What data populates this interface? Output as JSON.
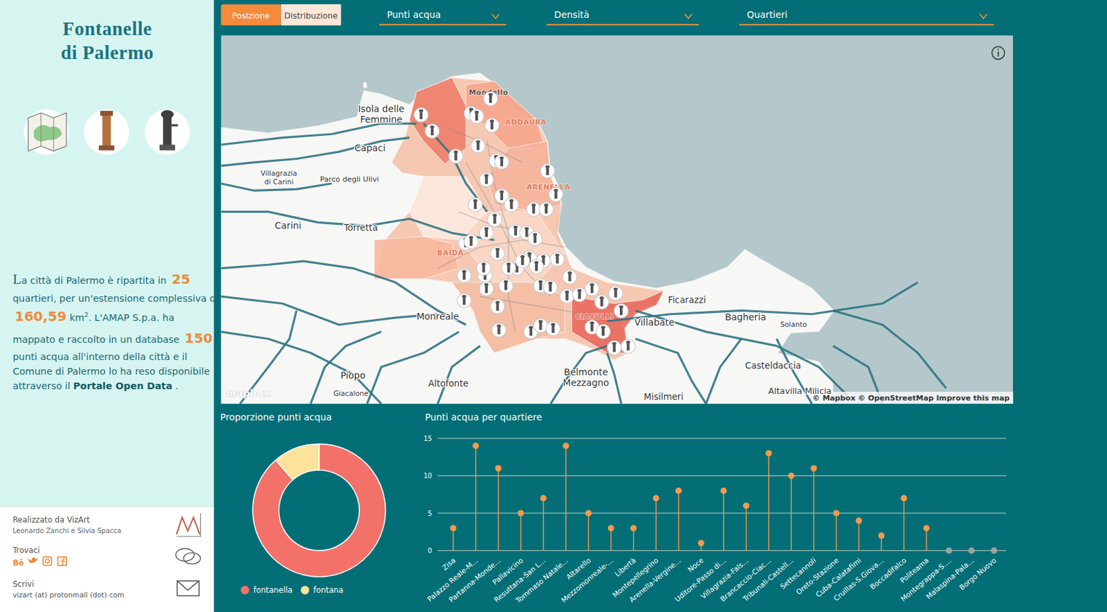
{
  "toolbar": {
    "toggle": [
      "Posizione",
      "Distribuzione"
    ],
    "active": "Posizione",
    "dropdowns": [
      "Punti acqua",
      "Densità",
      "Quartieri"
    ]
  },
  "sidebar": {
    "title": [
      "Fontanelle",
      "di Palermo"
    ],
    "intro": [
      [
        {
          "text": "L",
          "style": "initial"
        },
        {
          "text": "a città di Palermo è ripartita in ",
          "style": "plain"
        },
        {
          "text": "25",
          "style": "number"
        }
      ],
      [
        {
          "text": "quartieri, per un'estensione complessiva di",
          "style": "plain"
        }
      ],
      [
        {
          "text": "160,59",
          "style": "number"
        },
        {
          "text": " km",
          "style": "plain"
        },
        {
          "text": "2",
          "style": "sup"
        },
        {
          "text": ". L'AMAP S.p.a. ha",
          "style": "plain"
        }
      ],
      [
        {
          "text": "mappato e raccolto in un database ",
          "style": "plain"
        },
        {
          "text": "150",
          "style": "number"
        }
      ],
      [
        {
          "text": "punti acqua all'interno della città e il",
          "style": "plain"
        }
      ],
      [
        {
          "text": "Comune di Palermo lo ha reso disponibile",
          "style": "plain"
        }
      ],
      [
        {
          "text": "attraverso il ",
          "style": "plain"
        },
        {
          "text": "Portale Open Data",
          "style": "link"
        },
        {
          "text": " .",
          "style": "plain"
        }
      ]
    ],
    "footer": {
      "credit": "Realizzato da VizArt",
      "authors": "Leonardo Zanchi e Silvia Spacca",
      "social_label": "Trovaci",
      "social": [
        "Bē"
      ],
      "contact_label": "Scrivi",
      "email": "vizart (at) protonmail (dot) com"
    }
  },
  "map": {
    "xlim": [
      13.05,
      13.62
    ],
    "ylim": [
      38.24,
      37.99
    ],
    "places": [
      [
        "Isola delle",
        "Femmine"
      ],
      [
        "Capaci"
      ],
      [
        "Villagrazia",
        "di Carini"
      ],
      [
        "Parco degli Ulivi"
      ],
      [
        "Carini"
      ],
      [
        "Torretta"
      ],
      [
        "Monreale"
      ],
      [
        "Piopo"
      ],
      [
        "Giacalone"
      ],
      [
        "Altofonte"
      ],
      [
        "Belmonte",
        "Mezzagno"
      ],
      [
        "Misilmeri"
      ],
      [
        "Villabate"
      ],
      [
        "Ficarazzi"
      ],
      [
        "Bagheria"
      ],
      [
        "Solanto"
      ],
      [
        "Casteldaccia"
      ],
      [
        "Altavilla Milicia"
      ]
    ],
    "districts": [
      "Mondello",
      "ADDAURA",
      "ARENELLA",
      "BAIDA",
      "CIACULLI"
    ],
    "attribution": "© Mapbox © OpenStreetMap Improve this map",
    "logo": "mapbox",
    "markers": [
      [
        13.194,
        38.186
      ],
      [
        13.202,
        38.175
      ],
      [
        13.219,
        38.158
      ],
      [
        13.23,
        38.187
      ],
      [
        13.234,
        38.185
      ],
      [
        13.244,
        38.197
      ],
      [
        13.245,
        38.179
      ],
      [
        13.235,
        38.165
      ],
      [
        13.248,
        38.155
      ],
      [
        13.252,
        38.154
      ],
      [
        13.241,
        38.142
      ],
      [
        13.285,
        38.148
      ],
      [
        13.291,
        38.132
      ],
      [
        13.252,
        38.131
      ],
      [
        13.259,
        38.125
      ],
      [
        13.275,
        38.122
      ],
      [
        13.284,
        38.122
      ],
      [
        13.233,
        38.125
      ],
      [
        13.247,
        38.115
      ],
      [
        13.241,
        38.106
      ],
      [
        13.226,
        38.099
      ],
      [
        13.23,
        38.1
      ],
      [
        13.262,
        38.107
      ],
      [
        13.27,
        38.106
      ],
      [
        13.276,
        38.102
      ],
      [
        13.249,
        38.092
      ],
      [
        13.272,
        38.089
      ],
      [
        13.282,
        38.087
      ],
      [
        13.292,
        38.088
      ],
      [
        13.263,
        38.082
      ],
      [
        13.277,
        38.083
      ],
      [
        13.301,
        38.076
      ],
      [
        13.225,
        38.077
      ],
      [
        13.24,
        38.077
      ],
      [
        13.241,
        38.068
      ],
      [
        13.255,
        38.07
      ],
      [
        13.28,
        38.07
      ],
      [
        13.287,
        38.069
      ],
      [
        13.299,
        38.063
      ],
      [
        13.308,
        38.064
      ],
      [
        13.317,
        38.068
      ],
      [
        13.334,
        38.065
      ],
      [
        13.324,
        38.059
      ],
      [
        13.338,
        38.053
      ],
      [
        13.225,
        38.06
      ],
      [
        13.249,
        38.056
      ],
      [
        13.317,
        38.042
      ],
      [
        13.325,
        38.039
      ],
      [
        13.25,
        38.04
      ],
      [
        13.273,
        38.039
      ],
      [
        13.28,
        38.043
      ],
      [
        13.289,
        38.041
      ],
      [
        13.333,
        38.028
      ],
      [
        13.343,
        38.029
      ],
      [
        13.239,
        38.082
      ],
      [
        13.257,
        38.082
      ],
      [
        13.267,
        38.087
      ]
    ]
  },
  "chart_data": [
    {
      "type": "donut",
      "title": "Proporzione punti acqua",
      "categories": [
        "fontanella",
        "fontana"
      ],
      "values": [
        133,
        17
      ],
      "colors": [
        "#f2726a",
        "#fde29b"
      ],
      "legend": "bottom"
    },
    {
      "type": "lollipop",
      "title": "Punti acqua per quartiere",
      "categories": [
        "Zisa",
        "Palazzo Reale-M…",
        "Partanna-Monde…",
        "Pallavicino",
        "Resuttana-San L…",
        "Tommaso Natale…",
        "Altarello",
        "Mezzomonreale-…",
        "Libertà",
        "Montepellegrino",
        "Arenella-Vergine…",
        "Noce",
        "Uditore-Passo di…",
        "Villagrazia-Fals…",
        "Brancaccio-Ciac…",
        "Tribunali-Castell…",
        "Settecannoli",
        "Oreto-Stazione",
        "Cuba-Calatafimi",
        "Cruillas-S.Giova…",
        "Boccadifalco",
        "Politeama",
        "Montegrappa-S.…",
        "Malaspina-Pala…",
        "Borgo Nuovo"
      ],
      "values": [
        3,
        14,
        11,
        5,
        7,
        14,
        5,
        3,
        3,
        7,
        8,
        1,
        8,
        6,
        13,
        10,
        11,
        5,
        4,
        2,
        7,
        3,
        0,
        0,
        0
      ],
      "colors": [
        "#f59a4a",
        "#f59a4a",
        "#f59a4a",
        "#f59a4a",
        "#f59a4a",
        "#f59a4a",
        "#f59a4a",
        "#f59a4a",
        "#f59a4a",
        "#f59a4a",
        "#f59a4a",
        "#f59a4a",
        "#f59a4a",
        "#f59a4a",
        "#f59a4a",
        "#f59a4a",
        "#f59a4a",
        "#f59a4a",
        "#f59a4a",
        "#f59a4a",
        "#f59a4a",
        "#f59a4a",
        "#9aa3a3",
        "#9aa3a3",
        "#9aa3a3"
      ],
      "ylim": [
        0,
        15
      ],
      "yticks": [
        0,
        5,
        10,
        15
      ],
      "grid": true
    }
  ]
}
